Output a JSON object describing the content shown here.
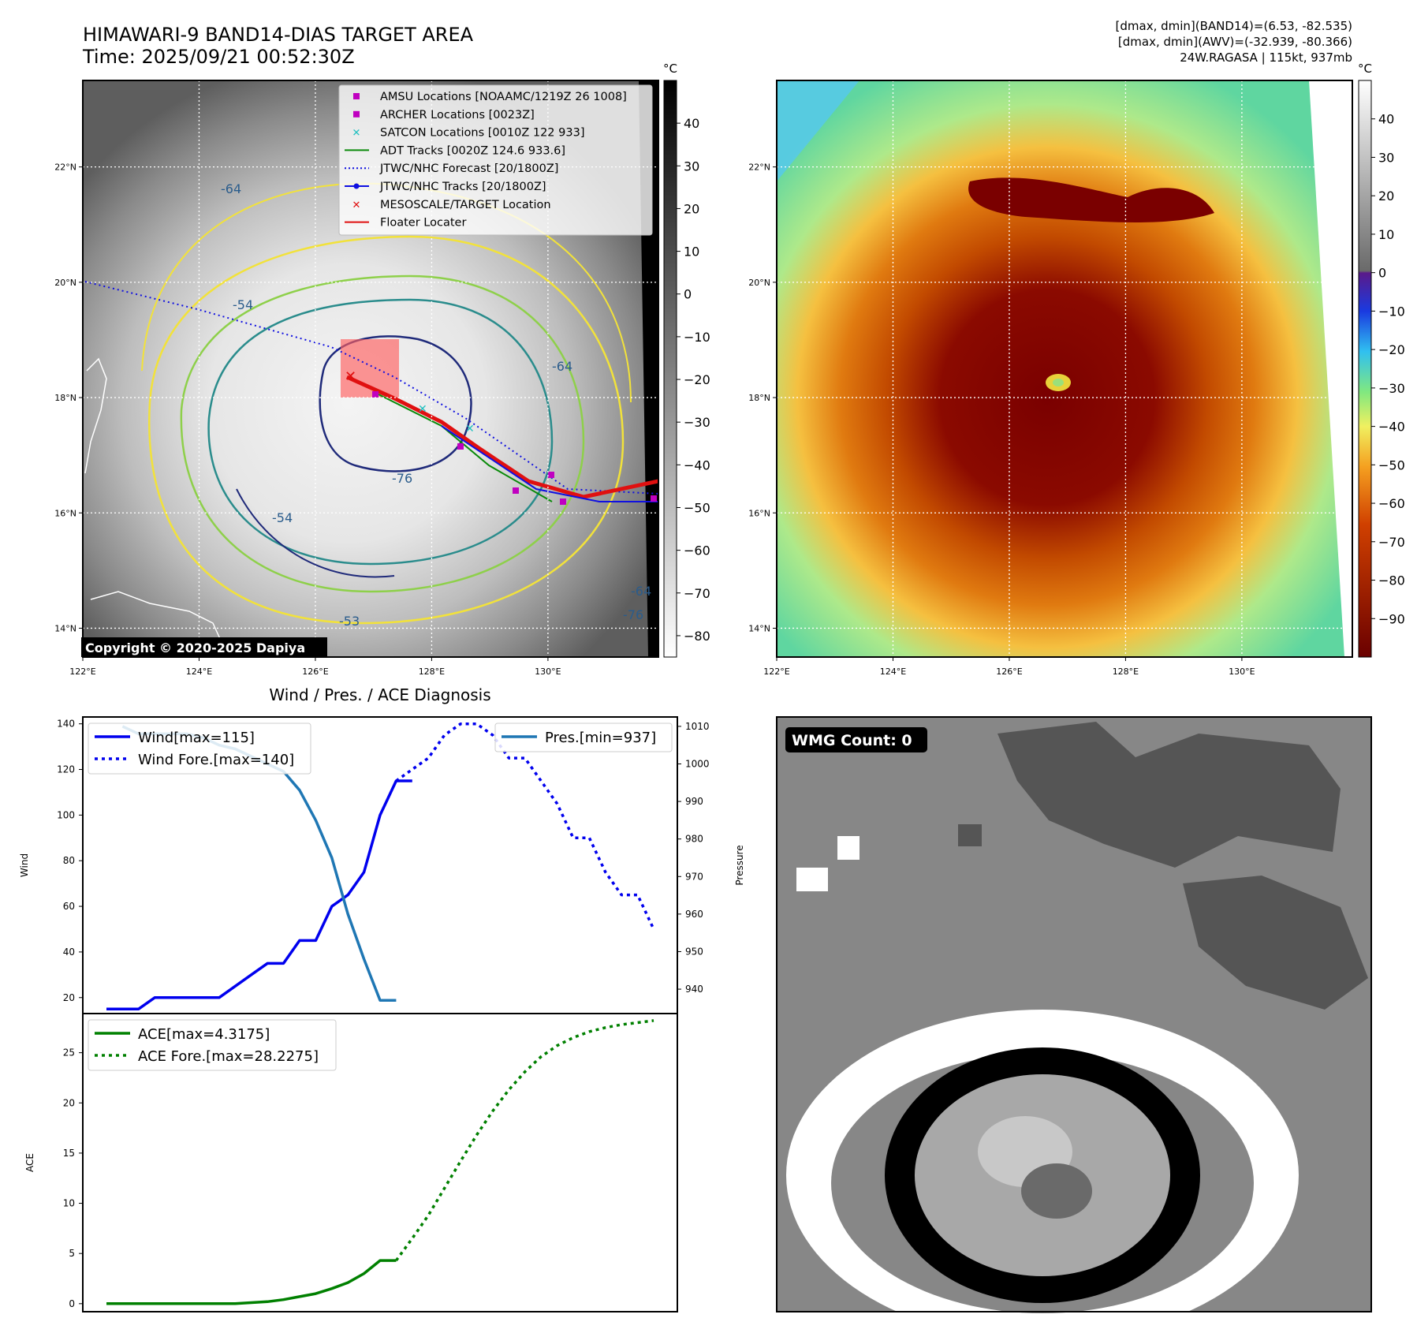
{
  "header": {
    "title_line1": "HIMAWARI-9 BAND14-DIAS TARGET AREA",
    "title_line2": "Time: 2025/09/21 00:52:30Z",
    "stats_line1": "[dmax, dmin](BAND14)=(6.53, -82.535)",
    "stats_line2": "[dmax, dmin](AWV)=(-32.939, -80.366)",
    "stats_line3": "24W.RAGASA | 115kt, 937mb"
  },
  "copyright": "Copyright © 2020-2025 Dapiya",
  "map": {
    "lat_labels": [
      "22°N",
      "20°N",
      "18°N",
      "16°N",
      "14°N"
    ],
    "lat_values": [
      22,
      20,
      18,
      16,
      14
    ],
    "lon_labels": [
      "122°E",
      "124°E",
      "126°E",
      "128°E",
      "130°E"
    ],
    "lon_values": [
      122,
      124,
      126,
      128,
      130
    ],
    "lon_range": [
      122,
      131.9
    ],
    "lat_range": [
      13.5,
      23.5
    ],
    "contour_labels": [
      "-64",
      "-54",
      "-76",
      "-54",
      "-64",
      "-64",
      "-76",
      "-53"
    ],
    "colors": {
      "awv_contour": "#1f2a7a",
      "mid_contour": "#2a8c8c",
      "outer_contour": "#f2e23a",
      "legend_amsu": "#c000c0",
      "legend_satcon": "#20c0c0",
      "legend_adt": "#0a8a0a",
      "legend_jtwc": "#1010e0",
      "legend_meso": "#e01010",
      "legend_floater": "#e01010"
    }
  },
  "legend": {
    "items": [
      {
        "label": "AMSU Locations [NOAAMC/1219Z 26 1008]",
        "icon": "square-marker"
      },
      {
        "label": "ARCHER Locations [0023Z]",
        "icon": "square-marker"
      },
      {
        "label": "SATCON Locations [0010Z 122 933]",
        "icon": "x-marker"
      },
      {
        "label": "ADT Tracks [0020Z 124.6 933.6]",
        "icon": "solid-line"
      },
      {
        "label": "JTWC/NHC Forecast [20/1800Z]",
        "icon": "dotted-line"
      },
      {
        "label": "JTWC/NHC Tracks [20/1800Z]",
        "icon": "line-dot"
      },
      {
        "label": "MESOSCALE/TARGET Location",
        "icon": "x-marker"
      },
      {
        "label": "Floater Locater",
        "icon": "solid-line"
      }
    ]
  },
  "colorbar_gray": {
    "unit": "°C",
    "ticks": [
      "40",
      "30",
      "20",
      "10",
      "0",
      "−10",
      "−20",
      "−30",
      "−40",
      "−50",
      "−60",
      "−70",
      "−80"
    ],
    "values": [
      40,
      30,
      20,
      10,
      0,
      -10,
      -20,
      -30,
      -40,
      -50,
      -60,
      -70,
      -80
    ],
    "range": [
      -85,
      50
    ]
  },
  "colorbar_color": {
    "unit": "°C",
    "ticks": [
      "40",
      "30",
      "20",
      "10",
      "0",
      "−10",
      "−20",
      "−30",
      "−40",
      "−50",
      "−60",
      "−70",
      "−80",
      "−90"
    ],
    "values": [
      40,
      30,
      20,
      10,
      0,
      -10,
      -20,
      -30,
      -40,
      -50,
      -60,
      -70,
      -80,
      -90
    ],
    "range": [
      -100,
      50
    ]
  },
  "wmg": {
    "label": "WMG Count: 0"
  },
  "chart_data": [
    {
      "type": "line",
      "title": "Wind / Pres. / ACE Diagnosis",
      "ylabel": "Wind",
      "ylabel_right": "Pressure",
      "ylim": [
        13,
        143
      ],
      "ylim_right": [
        933.5,
        1012.5
      ],
      "yticks": [
        20,
        40,
        60,
        80,
        100,
        120,
        140
      ],
      "yticks_right": [
        940,
        950,
        960,
        970,
        980,
        990,
        1000,
        1010
      ],
      "x_count": 35,
      "series": [
        {
          "name": "Wind[max=115]",
          "axis": "left",
          "style": "solid",
          "color": "#0000ee",
          "x": [
            0,
            1,
            2,
            3,
            4,
            5,
            6,
            7,
            8,
            9,
            10,
            11,
            12,
            13,
            14,
            15,
            16,
            17,
            18,
            19
          ],
          "values": [
            15,
            15,
            15,
            20,
            20,
            20,
            20,
            20,
            25,
            30,
            35,
            35,
            45,
            45,
            60,
            65,
            75,
            100,
            115,
            115
          ]
        },
        {
          "name": "Wind Fore.[max=140]",
          "axis": "left",
          "style": "dotted",
          "color": "#0000ee",
          "x": [
            18,
            19,
            20,
            21,
            22,
            23,
            24,
            25,
            26,
            27,
            28,
            29,
            30,
            31,
            32,
            33,
            34
          ],
          "values": [
            115,
            120,
            125,
            135,
            140,
            140,
            135,
            125,
            125,
            115,
            105,
            90,
            90,
            75,
            65,
            65,
            50
          ]
        },
        {
          "name": "Pres.[min=937]",
          "axis": "right",
          "style": "solid",
          "color": "#1f77b4",
          "x": [
            1,
            2,
            3,
            4,
            5,
            6,
            7,
            8,
            9,
            10,
            11,
            12,
            13,
            14,
            15,
            16,
            17,
            18
          ],
          "values": [
            1010,
            1008,
            1008,
            1008,
            1008,
            1007,
            1005,
            1004,
            1002,
            1000,
            998,
            993,
            985,
            975,
            960,
            948,
            937,
            937
          ]
        }
      ]
    },
    {
      "type": "line",
      "ylabel": "ACE",
      "ylim": [
        -0.8,
        28.9
      ],
      "yticks": [
        0,
        5,
        10,
        15,
        20,
        25
      ],
      "x_count": 35,
      "series": [
        {
          "name": "ACE[max=4.3175]",
          "style": "solid",
          "color": "#008000",
          "x": [
            0,
            1,
            2,
            3,
            4,
            5,
            6,
            7,
            8,
            9,
            10,
            11,
            12,
            13,
            14,
            15,
            16,
            17,
            18
          ],
          "values": [
            0,
            0,
            0,
            0,
            0,
            0,
            0,
            0,
            0,
            0.1,
            0.2,
            0.4,
            0.7,
            1.0,
            1.5,
            2.1,
            3.0,
            4.3,
            4.3
          ]
        },
        {
          "name": "ACE Fore.[max=28.2275]",
          "style": "dotted",
          "color": "#008000",
          "x": [
            18,
            19,
            20,
            21,
            22,
            23,
            24,
            25,
            26,
            27,
            28,
            29,
            30,
            31,
            32,
            33,
            34
          ],
          "values": [
            4.3,
            6.5,
            8.8,
            11.5,
            14.2,
            16.8,
            19.2,
            21.3,
            23.1,
            24.6,
            25.7,
            26.5,
            27.1,
            27.5,
            27.8,
            28.0,
            28.2
          ]
        }
      ]
    }
  ]
}
